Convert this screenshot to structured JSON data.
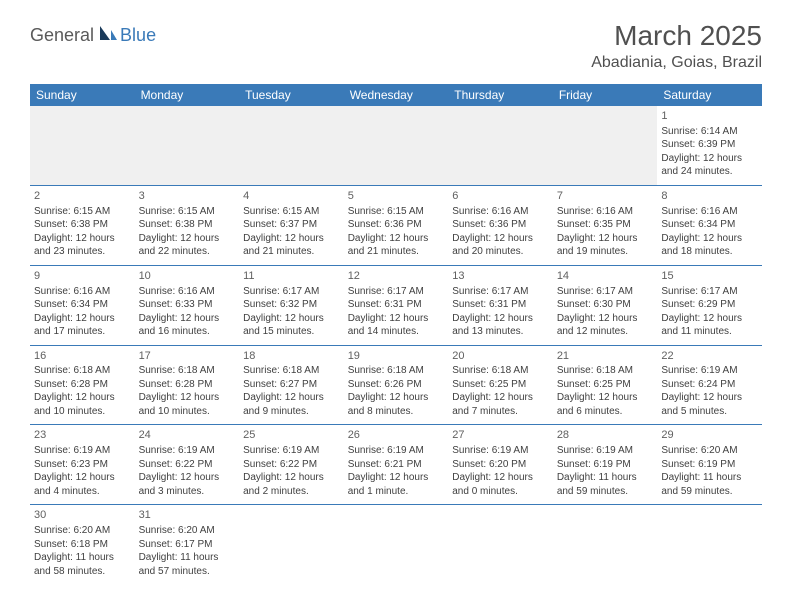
{
  "logo": {
    "part1": "General",
    "part2": "Blue"
  },
  "title": "March 2025",
  "location": "Abadiania, Goias, Brazil",
  "colors": {
    "header_bg": "#3a7ab8",
    "header_text": "#ffffff",
    "border": "#3a7ab8",
    "cell_text": "#404040",
    "title_text": "#505050",
    "blank_bg": "#f0f0f0"
  },
  "dayNames": [
    "Sunday",
    "Monday",
    "Tuesday",
    "Wednesday",
    "Thursday",
    "Friday",
    "Saturday"
  ],
  "weeks": [
    [
      null,
      null,
      null,
      null,
      null,
      null,
      {
        "n": "1",
        "sr": "Sunrise: 6:14 AM",
        "ss": "Sunset: 6:39 PM",
        "dl": "Daylight: 12 hours and 24 minutes."
      }
    ],
    [
      {
        "n": "2",
        "sr": "Sunrise: 6:15 AM",
        "ss": "Sunset: 6:38 PM",
        "dl": "Daylight: 12 hours and 23 minutes."
      },
      {
        "n": "3",
        "sr": "Sunrise: 6:15 AM",
        "ss": "Sunset: 6:38 PM",
        "dl": "Daylight: 12 hours and 22 minutes."
      },
      {
        "n": "4",
        "sr": "Sunrise: 6:15 AM",
        "ss": "Sunset: 6:37 PM",
        "dl": "Daylight: 12 hours and 21 minutes."
      },
      {
        "n": "5",
        "sr": "Sunrise: 6:15 AM",
        "ss": "Sunset: 6:36 PM",
        "dl": "Daylight: 12 hours and 21 minutes."
      },
      {
        "n": "6",
        "sr": "Sunrise: 6:16 AM",
        "ss": "Sunset: 6:36 PM",
        "dl": "Daylight: 12 hours and 20 minutes."
      },
      {
        "n": "7",
        "sr": "Sunrise: 6:16 AM",
        "ss": "Sunset: 6:35 PM",
        "dl": "Daylight: 12 hours and 19 minutes."
      },
      {
        "n": "8",
        "sr": "Sunrise: 6:16 AM",
        "ss": "Sunset: 6:34 PM",
        "dl": "Daylight: 12 hours and 18 minutes."
      }
    ],
    [
      {
        "n": "9",
        "sr": "Sunrise: 6:16 AM",
        "ss": "Sunset: 6:34 PM",
        "dl": "Daylight: 12 hours and 17 minutes."
      },
      {
        "n": "10",
        "sr": "Sunrise: 6:16 AM",
        "ss": "Sunset: 6:33 PM",
        "dl": "Daylight: 12 hours and 16 minutes."
      },
      {
        "n": "11",
        "sr": "Sunrise: 6:17 AM",
        "ss": "Sunset: 6:32 PM",
        "dl": "Daylight: 12 hours and 15 minutes."
      },
      {
        "n": "12",
        "sr": "Sunrise: 6:17 AM",
        "ss": "Sunset: 6:31 PM",
        "dl": "Daylight: 12 hours and 14 minutes."
      },
      {
        "n": "13",
        "sr": "Sunrise: 6:17 AM",
        "ss": "Sunset: 6:31 PM",
        "dl": "Daylight: 12 hours and 13 minutes."
      },
      {
        "n": "14",
        "sr": "Sunrise: 6:17 AM",
        "ss": "Sunset: 6:30 PM",
        "dl": "Daylight: 12 hours and 12 minutes."
      },
      {
        "n": "15",
        "sr": "Sunrise: 6:17 AM",
        "ss": "Sunset: 6:29 PM",
        "dl": "Daylight: 12 hours and 11 minutes."
      }
    ],
    [
      {
        "n": "16",
        "sr": "Sunrise: 6:18 AM",
        "ss": "Sunset: 6:28 PM",
        "dl": "Daylight: 12 hours and 10 minutes."
      },
      {
        "n": "17",
        "sr": "Sunrise: 6:18 AM",
        "ss": "Sunset: 6:28 PM",
        "dl": "Daylight: 12 hours and 10 minutes."
      },
      {
        "n": "18",
        "sr": "Sunrise: 6:18 AM",
        "ss": "Sunset: 6:27 PM",
        "dl": "Daylight: 12 hours and 9 minutes."
      },
      {
        "n": "19",
        "sr": "Sunrise: 6:18 AM",
        "ss": "Sunset: 6:26 PM",
        "dl": "Daylight: 12 hours and 8 minutes."
      },
      {
        "n": "20",
        "sr": "Sunrise: 6:18 AM",
        "ss": "Sunset: 6:25 PM",
        "dl": "Daylight: 12 hours and 7 minutes."
      },
      {
        "n": "21",
        "sr": "Sunrise: 6:18 AM",
        "ss": "Sunset: 6:25 PM",
        "dl": "Daylight: 12 hours and 6 minutes."
      },
      {
        "n": "22",
        "sr": "Sunrise: 6:19 AM",
        "ss": "Sunset: 6:24 PM",
        "dl": "Daylight: 12 hours and 5 minutes."
      }
    ],
    [
      {
        "n": "23",
        "sr": "Sunrise: 6:19 AM",
        "ss": "Sunset: 6:23 PM",
        "dl": "Daylight: 12 hours and 4 minutes."
      },
      {
        "n": "24",
        "sr": "Sunrise: 6:19 AM",
        "ss": "Sunset: 6:22 PM",
        "dl": "Daylight: 12 hours and 3 minutes."
      },
      {
        "n": "25",
        "sr": "Sunrise: 6:19 AM",
        "ss": "Sunset: 6:22 PM",
        "dl": "Daylight: 12 hours and 2 minutes."
      },
      {
        "n": "26",
        "sr": "Sunrise: 6:19 AM",
        "ss": "Sunset: 6:21 PM",
        "dl": "Daylight: 12 hours and 1 minute."
      },
      {
        "n": "27",
        "sr": "Sunrise: 6:19 AM",
        "ss": "Sunset: 6:20 PM",
        "dl": "Daylight: 12 hours and 0 minutes."
      },
      {
        "n": "28",
        "sr": "Sunrise: 6:19 AM",
        "ss": "Sunset: 6:19 PM",
        "dl": "Daylight: 11 hours and 59 minutes."
      },
      {
        "n": "29",
        "sr": "Sunrise: 6:20 AM",
        "ss": "Sunset: 6:19 PM",
        "dl": "Daylight: 11 hours and 59 minutes."
      }
    ],
    [
      {
        "n": "30",
        "sr": "Sunrise: 6:20 AM",
        "ss": "Sunset: 6:18 PM",
        "dl": "Daylight: 11 hours and 58 minutes."
      },
      {
        "n": "31",
        "sr": "Sunrise: 6:20 AM",
        "ss": "Sunset: 6:17 PM",
        "dl": "Daylight: 11 hours and 57 minutes."
      },
      null,
      null,
      null,
      null,
      null
    ]
  ]
}
